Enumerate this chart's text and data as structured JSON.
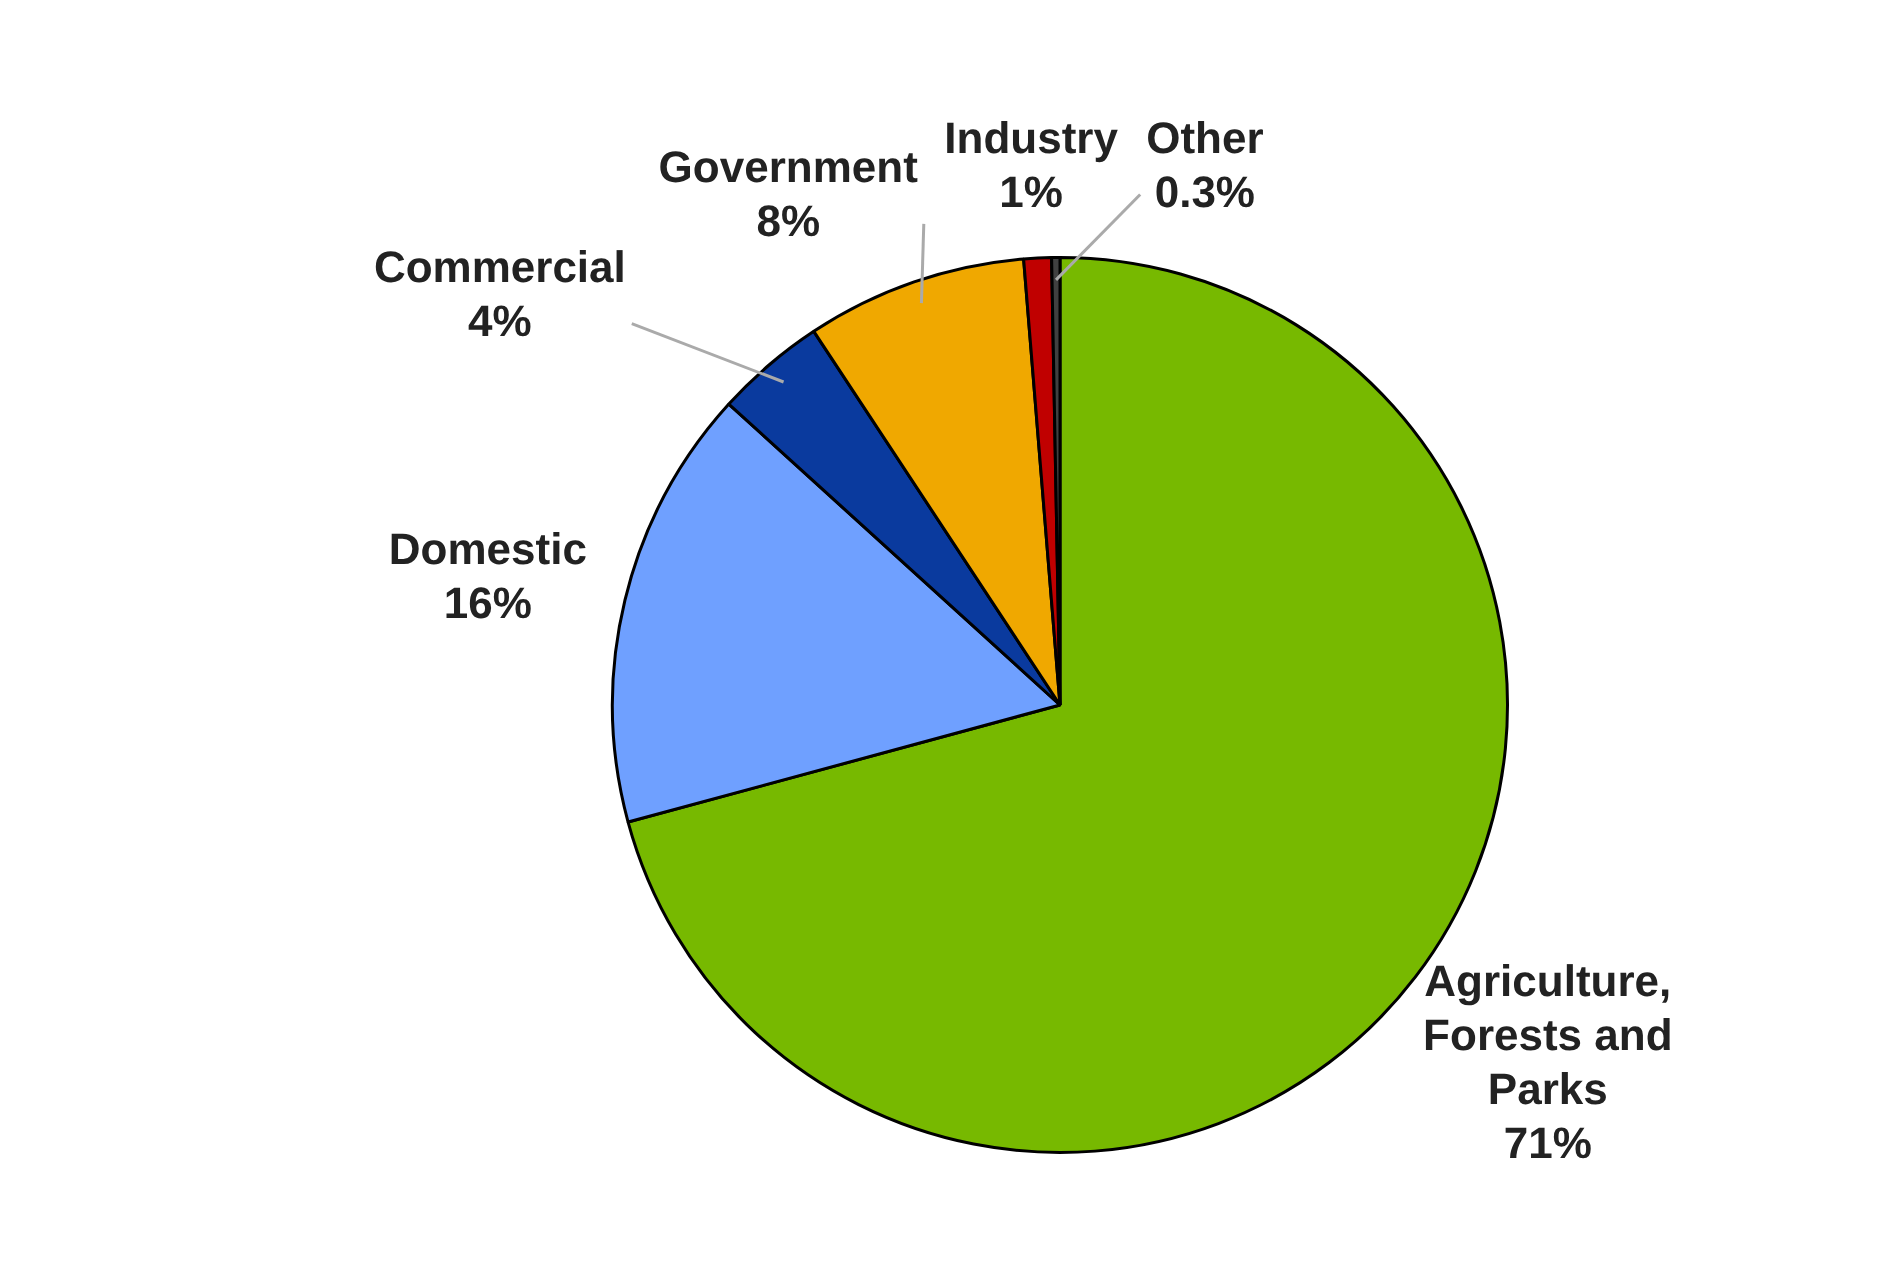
{
  "chart_data": {
    "type": "pie",
    "categories": [
      "Agriculture, Forests and Parks",
      "Domestic",
      "Commercial",
      "Government",
      "Industry",
      "Other"
    ],
    "values": [
      71,
      16,
      4,
      8,
      1,
      0.3
    ],
    "colors": [
      "#77b900",
      "#6fa0ff",
      "#0a3a9e",
      "#f0a800",
      "#c00000",
      "#404040"
    ],
    "value_labels": [
      "71%",
      "16%",
      "4%",
      "8%",
      "1%",
      "0.3%"
    ],
    "legend": false
  }
}
